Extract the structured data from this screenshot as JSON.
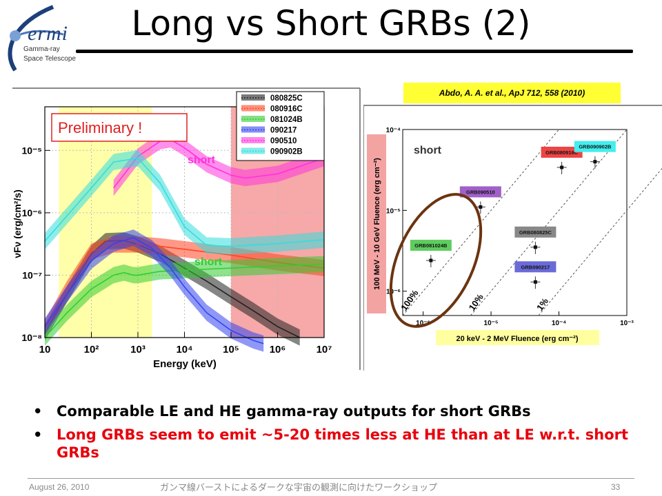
{
  "slide": {
    "title": "Long vs Short GRBs (2)",
    "logo": {
      "word": "ermi",
      "line1": "Gamma-ray",
      "line2": "Space Telescope"
    },
    "citation": "Abdo, A. A. et al., ApJ 712, 558 (2010)",
    "bullets": [
      "Comparable LE and HE gamma-ray outputs for short GRBs",
      "Long GRBs seem to emit ~5-20 times less at HE than at LE w.r.t. short GRBs"
    ],
    "footer": {
      "date": "August 26, 2010",
      "center": "ガンマ線バーストによるダークな宇宙の観測に向けたワークショップ",
      "page": "33"
    }
  },
  "chart_data": [
    {
      "type": "line",
      "xlabel": "Energy (keV)",
      "ylabel": "νFν (erg/cm²/s)",
      "xscale": "log",
      "yscale": "log",
      "xlim": [
        10,
        10000000
      ],
      "ylim": [
        1e-08,
        5e-05
      ],
      "xticks": [
        "10",
        "10²",
        "10³",
        "10⁴",
        "10⁵",
        "10⁶",
        "10⁷"
      ],
      "yticks": [
        "10⁻⁸",
        "10⁻⁷",
        "10⁻⁶",
        "10⁻⁵"
      ],
      "annotations": {
        "preliminary": "Preliminary !",
        "short1": "short",
        "short2": "short"
      },
      "shaded_regions": [
        {
          "x": [
            20,
            2000
          ],
          "color": "#ffffaa"
        },
        {
          "x": [
            100000,
            10000000
          ],
          "color": "#f7a8a8"
        }
      ],
      "legend_position": "top-right",
      "series": [
        {
          "name": "080825C",
          "color": "#222222",
          "x": [
            10,
            30,
            100,
            200,
            500,
            1000,
            3000,
            10000,
            30000,
            100000,
            300000,
            1000000,
            3000000
          ],
          "y": [
            1.2e-08,
            5e-08,
            2.2e-07,
            3.5e-07,
            3.6e-07,
            3.1e-07,
            2.2e-07,
            1.3e-07,
            8e-08,
            4.5e-08,
            2.7e-08,
            1.5e-08,
            1e-08
          ]
        },
        {
          "name": "080916C",
          "color": "#ff4422",
          "x": [
            10,
            30,
            100,
            300,
            1000,
            3000,
            10000,
            100000,
            1000000,
            10000000
          ],
          "y": [
            1.4e-08,
            6e-08,
            2.4e-07,
            3.1e-07,
            3.1e-07,
            2.9e-07,
            2.6e-07,
            2.1e-07,
            1.6e-07,
            1.3e-07
          ]
        },
        {
          "name": "081024B",
          "color": "#33cc33",
          "x": [
            10,
            30,
            100,
            300,
            500,
            800,
            1000,
            3000,
            10000,
            100000,
            1000000,
            10000000
          ],
          "y": [
            1e-08,
            2.5e-08,
            6e-08,
            1e-07,
            1.1e-07,
            1e-07,
            1e-07,
            1.15e-07,
            1.2e-07,
            1.3e-07,
            1.4e-07,
            1.5e-07
          ]
        },
        {
          "name": "090217",
          "color": "#3344ee",
          "x": [
            10,
            30,
            100,
            300,
            800,
            2000,
            5000,
            10000,
            30000,
            100000,
            300000,
            500000
          ],
          "y": [
            1.5e-08,
            5e-08,
            1.7e-07,
            3.2e-07,
            4e-07,
            2.7e-07,
            1.3e-07,
            6.5e-08,
            2.5e-08,
            1.3e-08,
            9e-09,
            8e-09
          ]
        },
        {
          "name": "090510",
          "color": "#ff33dd",
          "x": [
            300,
            1000,
            3000,
            5000,
            10000,
            30000,
            100000,
            200000,
            1000000,
            10000000
          ],
          "y": [
            2.5e-06,
            8e-06,
            1.4e-05,
            1.5e-05,
            1.1e-05,
            6e-06,
            4e-06,
            3.6e-06,
            4.2e-06,
            7.5e-06
          ]
        },
        {
          "name": "090902B",
          "color": "#33dddd",
          "x": [
            10,
            100,
            300,
            1000,
            3000,
            10000,
            30000,
            100000,
            1000000,
            10000000
          ],
          "y": [
            3.5e-07,
            2.5e-06,
            6.5e-06,
            7.5e-06,
            3e-06,
            6e-07,
            3e-07,
            2.9e-07,
            3.2e-07,
            3.7e-07
          ]
        }
      ]
    },
    {
      "type": "scatter",
      "xlabel": "20 keV - 2 MeV   Fluence (erg cm⁻²)",
      "ylabel": "100 MeV - 10 GeV   Fluence (erg cm⁻²)",
      "xscale": "log",
      "yscale": "log",
      "xlim": [
        5e-07,
        0.001
      ],
      "ylim": [
        5e-07,
        0.0001
      ],
      "xticks": [
        "10⁻⁶",
        "10⁻⁵",
        "10⁻⁴",
        "10⁻³"
      ],
      "yticks": [
        "10⁻⁶",
        "10⁻⁵",
        "10⁻⁴"
      ],
      "annotations": {
        "short": "short"
      },
      "ratio_lines": [
        "100%",
        "10%",
        "1%"
      ],
      "points": [
        {
          "label": "GRB081024B",
          "x": 1.3e-06,
          "y": 2.4e-06,
          "label_color": "#5ecc5e"
        },
        {
          "label": "GRB090510",
          "x": 7e-06,
          "y": 1.1e-05,
          "label_color": "#a060c8"
        },
        {
          "label": "GRB080825C",
          "x": 4.5e-05,
          "y": 3.5e-06,
          "label_color": "#888888"
        },
        {
          "label": "GRB090217",
          "x": 4.5e-05,
          "y": 1.3e-06,
          "label_color": "#6a6ad8"
        },
        {
          "label": "GRB080916C",
          "x": 0.00011,
          "y": 3.4e-05,
          "label_color": "#ee4444"
        },
        {
          "label": "GRB090902B",
          "x": 0.00034,
          "y": 4e-05,
          "label_color": "#44eeee"
        }
      ]
    }
  ]
}
